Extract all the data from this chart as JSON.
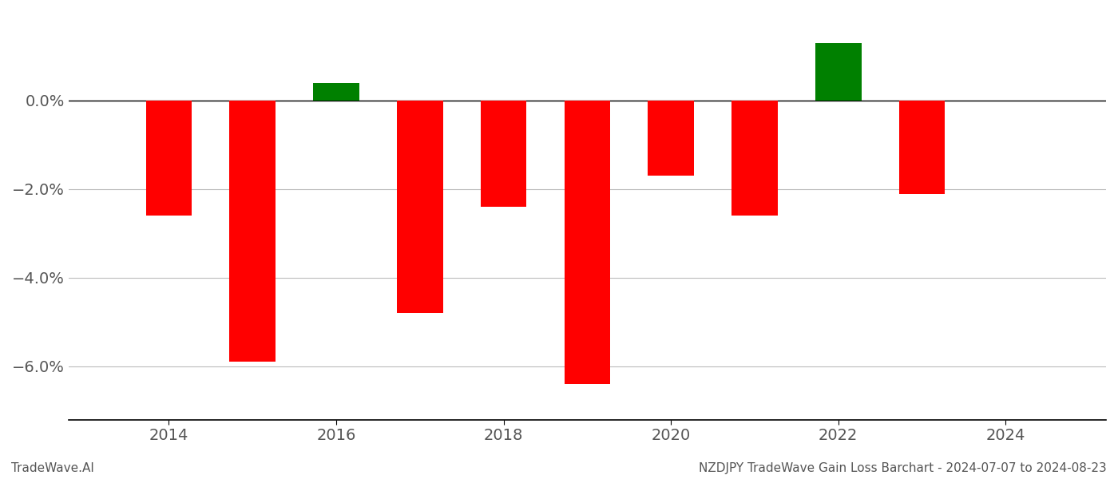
{
  "years": [
    2014,
    2015,
    2016,
    2017,
    2018,
    2019,
    2020,
    2021,
    2022,
    2023
  ],
  "values": [
    -0.026,
    -0.059,
    0.004,
    -0.048,
    -0.024,
    -0.064,
    -0.017,
    -0.026,
    0.013,
    -0.021
  ],
  "bar_colors": [
    "#ff0000",
    "#ff0000",
    "#008000",
    "#ff0000",
    "#ff0000",
    "#ff0000",
    "#ff0000",
    "#ff0000",
    "#008000",
    "#ff0000"
  ],
  "title_right": "NZDJPY TradeWave Gain Loss Barchart - 2024-07-07 to 2024-08-23",
  "title_left": "TradeWave.AI",
  "ylim_min": -0.072,
  "ylim_max": 0.02,
  "bar_width": 0.55,
  "background_color": "#ffffff",
  "grid_color": "#bbbbbb",
  "axis_color": "#000000",
  "tick_label_color": "#555555",
  "tick_fontsize": 14,
  "footer_fontsize": 11,
  "xlim_left": 2012.8,
  "xlim_right": 2025.2,
  "xtick_locations": [
    2014,
    2016,
    2018,
    2020,
    2022,
    2024
  ],
  "ytick_locations": [
    0.0,
    -0.02,
    -0.04,
    -0.06
  ],
  "ytick_labels": [
    "0.0%",
    "−2.0%",
    "−4.0%",
    "−6.0%"
  ]
}
